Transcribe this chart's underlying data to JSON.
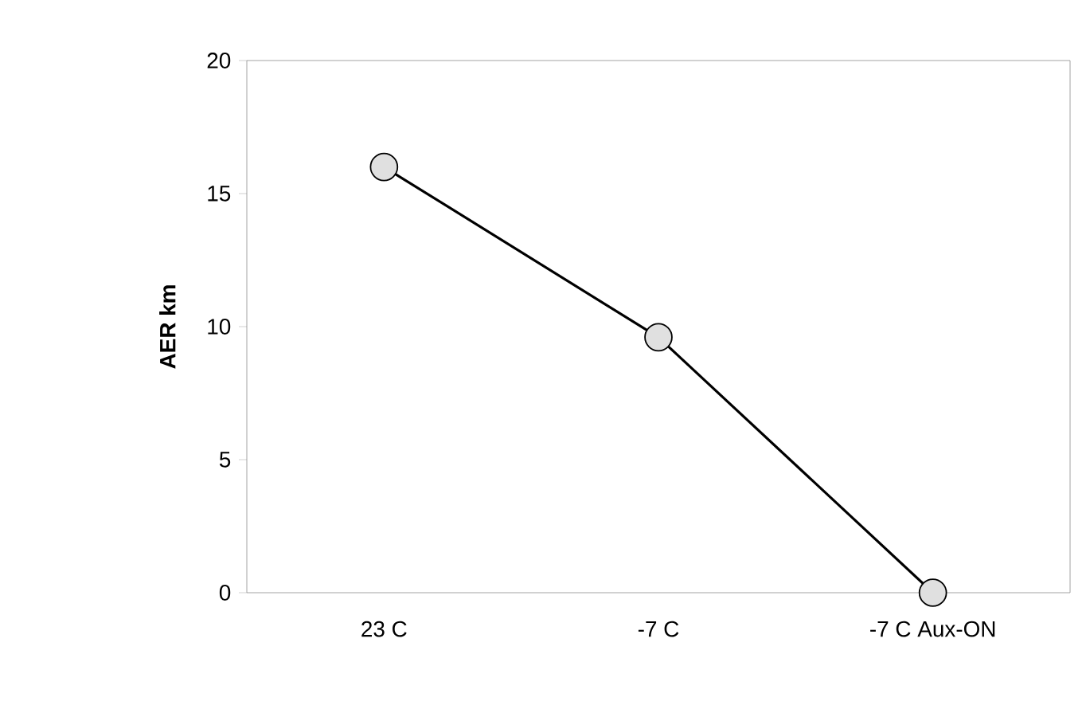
{
  "chart_data": {
    "type": "line",
    "ylabel": "AER km",
    "categories": [
      "23 C",
      "-7 C",
      "-7 C Aux-ON"
    ],
    "series": [
      {
        "color": "#000000",
        "values": [
          16,
          9.6,
          0
        ]
      }
    ],
    "ylim": [
      0,
      20
    ],
    "yticks": [
      0,
      5,
      10,
      15,
      20
    ],
    "marker": "circle",
    "line_style": "solid",
    "grid": false
  }
}
